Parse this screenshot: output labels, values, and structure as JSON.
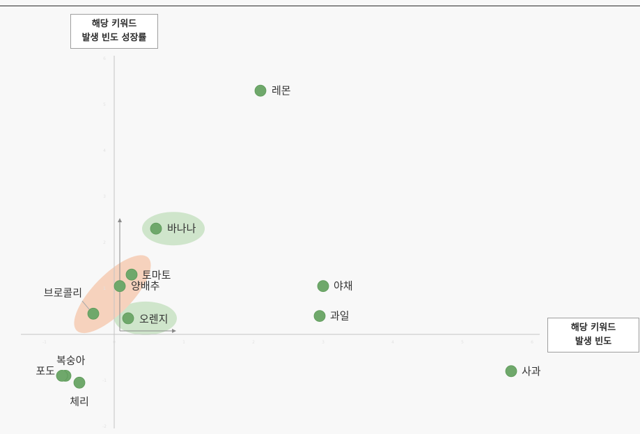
{
  "chart_data": {
    "type": "scatter",
    "title": "",
    "xlabel": "해당 키워드\n발생 빈도",
    "ylabel": "해당 키워드\n발생 빈도 성장률",
    "grid": false,
    "legend": "none",
    "point_color": "#6fa86b",
    "points": [
      {
        "name": "레몬",
        "x": 2.1,
        "y": 5.3
      },
      {
        "name": "바나나",
        "x": 0.6,
        "y": 2.3
      },
      {
        "name": "토마토",
        "x": 0.25,
        "y": 1.3
      },
      {
        "name": "양배추",
        "x": 0.08,
        "y": 1.05
      },
      {
        "name": "브로콜리",
        "x": -0.3,
        "y": 0.45
      },
      {
        "name": "오렌지",
        "x": 0.2,
        "y": 0.35
      },
      {
        "name": "야채",
        "x": 3.0,
        "y": 1.05
      },
      {
        "name": "과일",
        "x": 2.95,
        "y": 0.4
      },
      {
        "name": "사과",
        "x": 5.7,
        "y": -0.8
      },
      {
        "name": "복숭아",
        "x": -0.7,
        "y": -0.9
      },
      {
        "name": "포도",
        "x": -0.75,
        "y": -0.9
      },
      {
        "name": "체리",
        "x": -0.5,
        "y": -1.05
      }
    ],
    "highlight_groups": [
      {
        "members": [
          "바나나"
        ],
        "color": "#cfe5cb"
      },
      {
        "members": [
          "오렌지"
        ],
        "color": "#cfe5cb"
      },
      {
        "members": [
          "토마토",
          "양배추",
          "브로콜리"
        ],
        "color": "#f6d2bd"
      }
    ]
  }
}
